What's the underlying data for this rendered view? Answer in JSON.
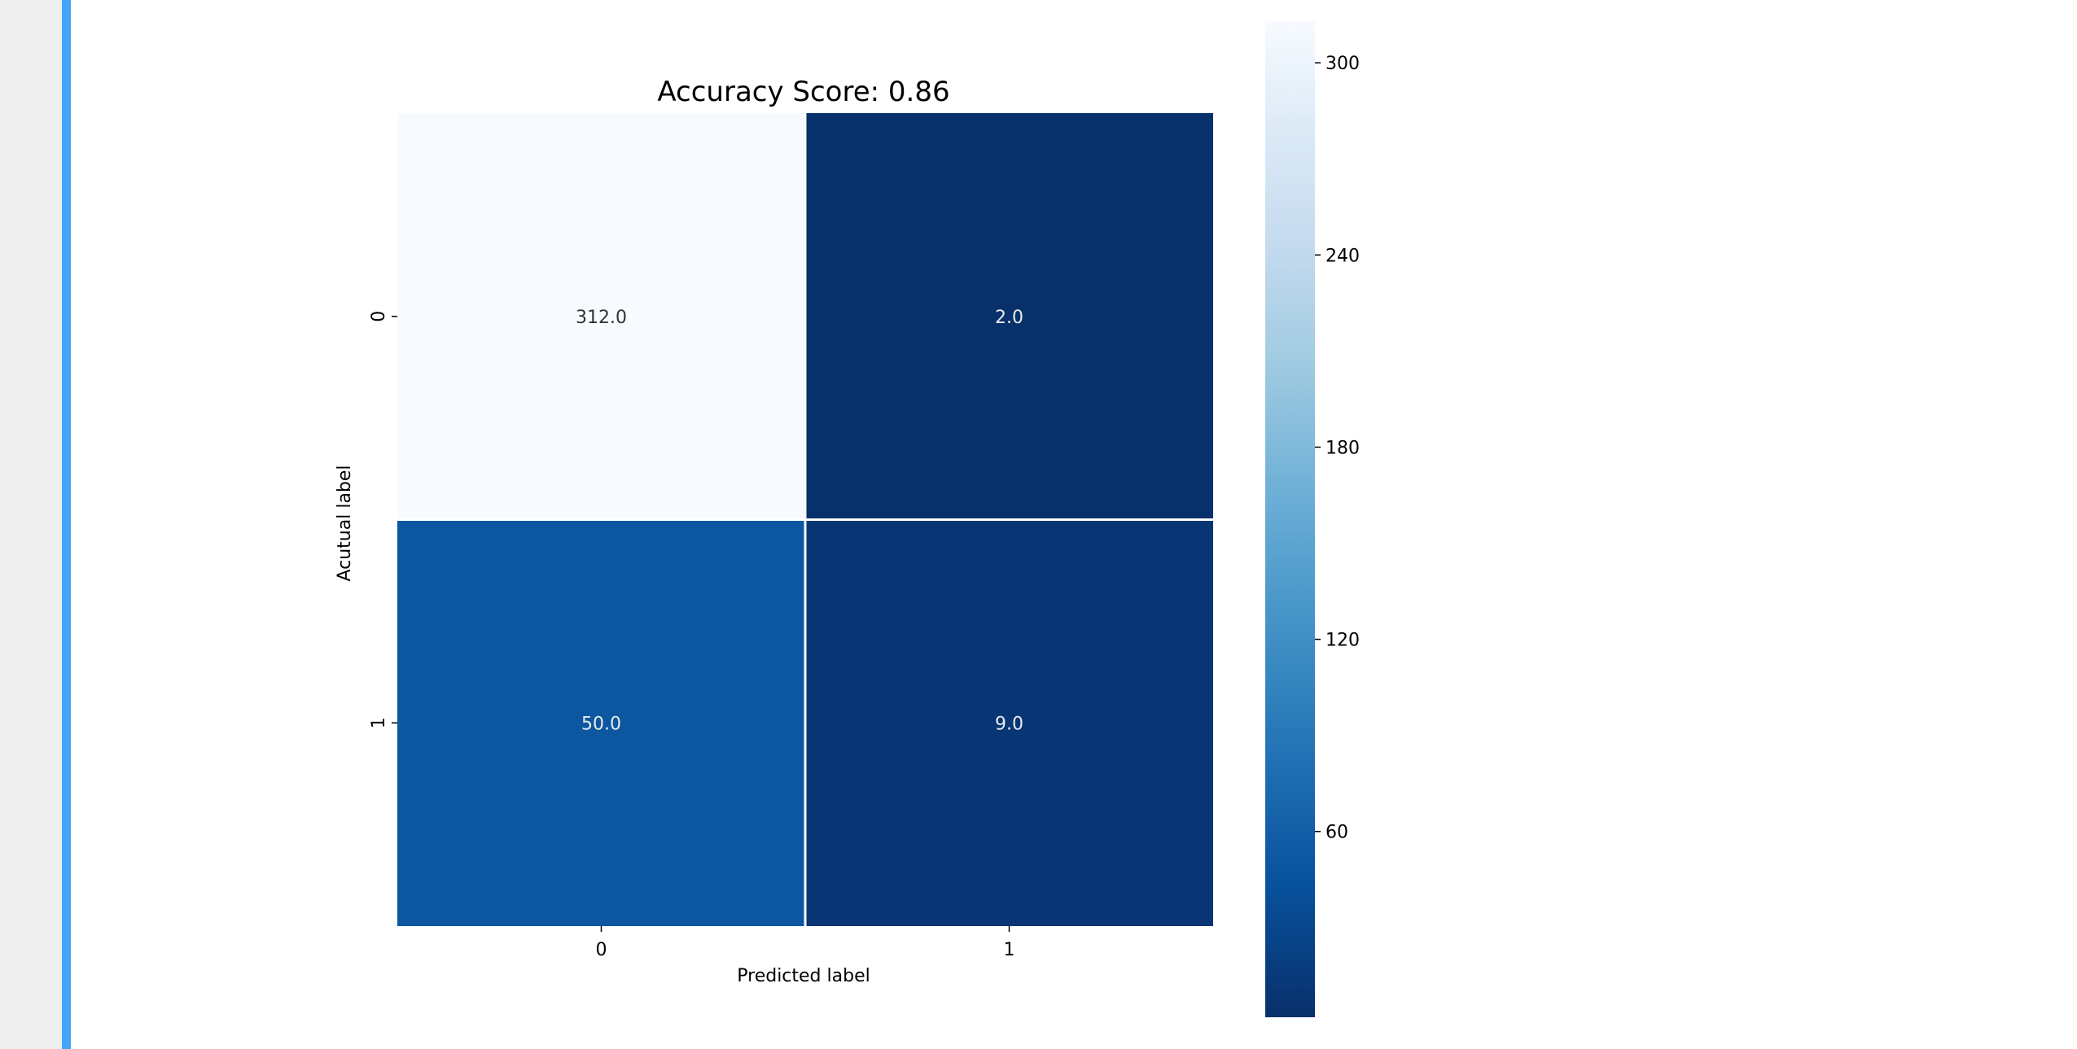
{
  "notebook": {
    "cell_state": "selected"
  },
  "chart_data": {
    "type": "heatmap",
    "title": "Accuracy Score: 0.86",
    "xlabel": "Predicted label",
    "ylabel": "Acutual label",
    "x_ticks": [
      "0",
      "1"
    ],
    "y_ticks": [
      "0",
      "1"
    ],
    "values": [
      [
        312,
        2
      ],
      [
        50,
        9
      ]
    ],
    "cell_labels": [
      [
        "312.0",
        "2.0"
      ],
      [
        "50.0",
        "9.0"
      ]
    ],
    "colormap": "Blues_r",
    "value_range": [
      2,
      312
    ],
    "colorbar": {
      "ticks": [
        60,
        120,
        180,
        240,
        300
      ],
      "tick_labels": [
        "60",
        "120",
        "180",
        "240",
        "300"
      ],
      "placement": "right"
    },
    "cell_text_color": "#eaeaea",
    "gridline_color": "#ffffff"
  }
}
